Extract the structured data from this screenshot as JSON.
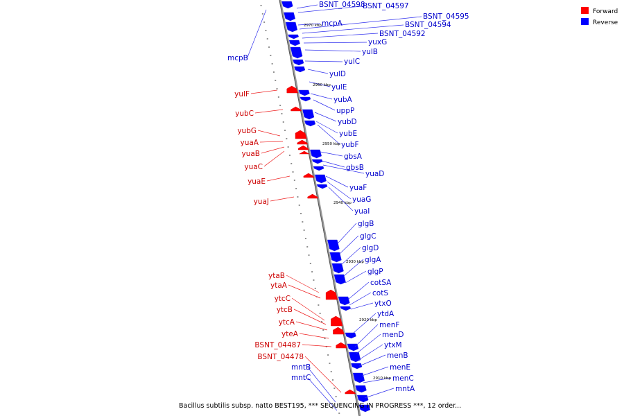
{
  "legend": {
    "forward_label": "Forward",
    "reverse_label": "Reverse",
    "forward_color": "#ff0000",
    "reverse_color": "#0000ff"
  },
  "caption": "Bacillus subtilis subsp. natto BEST195, *** SEQUENCING IN PROGRESS ***, 12 order...",
  "scale_labels": [
    "2970 kbp",
    "2960 kbp",
    "2950 kbp",
    "2940 kbp",
    "2930 kbp",
    "2920 kbp",
    "2910 kbp"
  ],
  "genes_reverse": [
    "BSNT_04598",
    "BSNT_04597",
    "BSNT_04595",
    "BSNT_04594",
    "mcpA",
    "BSNT_04592",
    "yuxG",
    "yulB",
    "yulC",
    "yulD",
    "yulE",
    "yubA",
    "uppP",
    "yubD",
    "yubE",
    "yubF",
    "gbsA",
    "gbsB",
    "yuaD",
    "yuaF",
    "yuaG",
    "yuaI",
    "glgB",
    "glgC",
    "glgD",
    "glgA",
    "glgP",
    "cotSA",
    "cotS",
    "ytxO",
    "ytdA",
    "menF",
    "menD",
    "ytxM",
    "menB",
    "menE",
    "menC",
    "mntA",
    "mcpB",
    "mntB",
    "mntC"
  ],
  "genes_forward": [
    "yulF",
    "yubC",
    "yubG",
    "yuaA",
    "yuaB",
    "yuaC",
    "yuaE",
    "yuaJ",
    "ytaB",
    "ytaA",
    "ytcC",
    "ytcB",
    "ytcA",
    "yteA",
    "BSNT_04487",
    "BSNT_04478"
  ]
}
